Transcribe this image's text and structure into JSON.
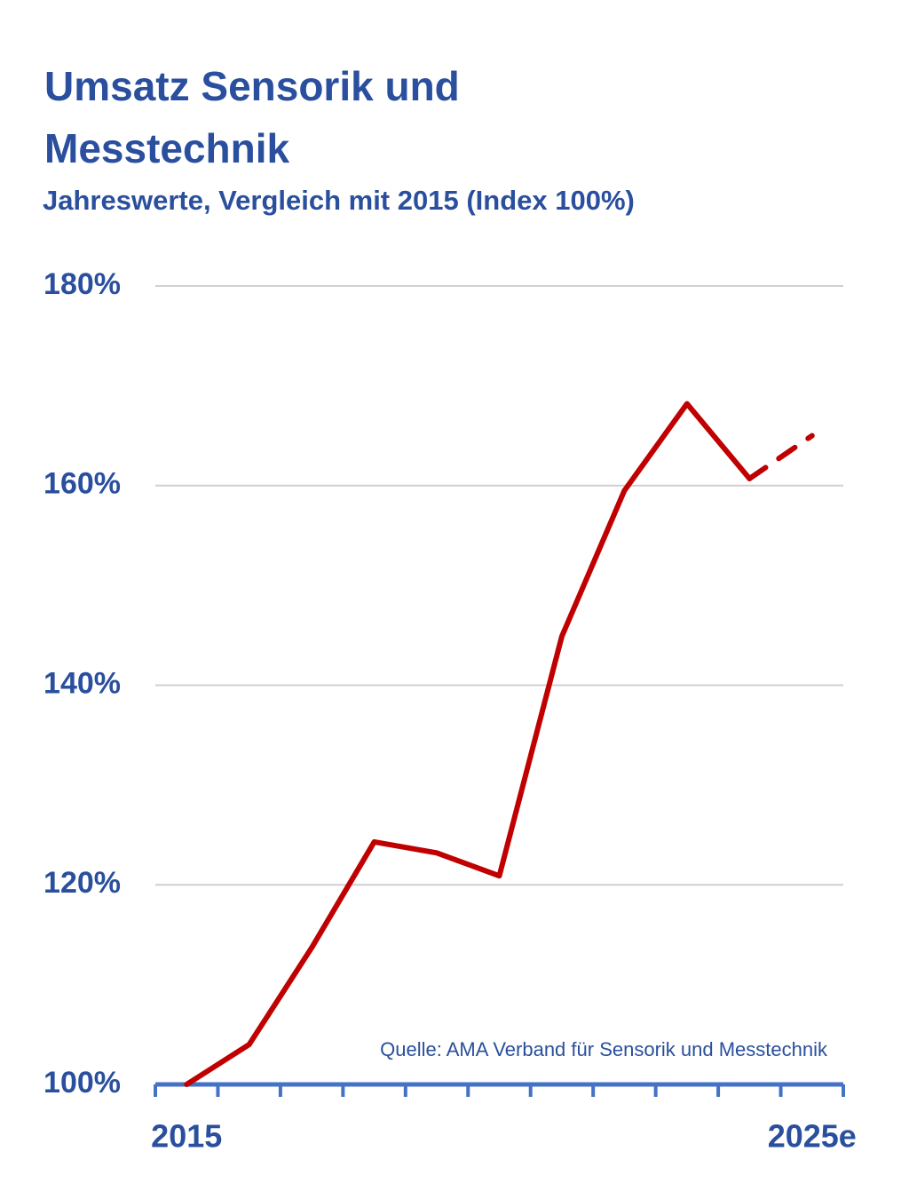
{
  "chart_data": {
    "type": "line",
    "title": "Umsatz Sensorik und Messtechnik",
    "subtitle": "Jahreswerte, Vergleich mit 2015 (Index 100%)",
    "source": "Quelle: AMA Verband für Sensorik und Messtechnik",
    "categories": [
      "2015",
      null,
      null,
      null,
      null,
      null,
      null,
      null,
      null,
      null,
      "2025e"
    ],
    "series": [
      {
        "color": "#c00000",
        "values": [
          100,
          104,
          113.7,
          124.3,
          123.2,
          120.9,
          144.9,
          159.5,
          168.2,
          160.7,
          null
        ]
      },
      {
        "color": "#c00000",
        "dashed": true,
        "values": [
          null,
          null,
          null,
          null,
          null,
          null,
          null,
          null,
          null,
          160.7,
          165
        ]
      }
    ],
    "ylim": [
      100,
      180
    ],
    "yticks": [
      {
        "value": 100,
        "label": "100%"
      },
      {
        "value": 120,
        "label": "120%"
      },
      {
        "value": 140,
        "label": "140%"
      },
      {
        "value": 160,
        "label": "160%"
      },
      {
        "value": 180,
        "label": "180%"
      }
    ],
    "grid": true
  }
}
